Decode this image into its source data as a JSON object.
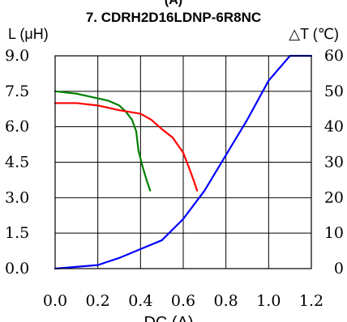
{
  "chart_data": {
    "type": "line",
    "title": "7. CDRH2D16LDNP-6R8NC",
    "top_clipped_text": "(A)",
    "xlabel": "DC (A)",
    "ylabel_left": "L (μH)",
    "ylabel_right": "△T (℃)",
    "xlim": [
      0,
      1.2
    ],
    "ylim_left": [
      0,
      9
    ],
    "ylim_right": [
      0,
      60
    ],
    "grid": true,
    "x_ticks": [
      "0.0",
      "0.2",
      "0.4",
      "0.6",
      "0.8",
      "1.0",
      "1.2"
    ],
    "y_left_ticks": [
      "0.0",
      "1.5",
      "3.0",
      "4.5",
      "6.0",
      "7.5",
      "9.0"
    ],
    "y_right_ticks": [
      "0",
      "10",
      "20",
      "30",
      "40",
      "50",
      "60"
    ],
    "series": [
      {
        "color": "#008000",
        "axis": "left",
        "points": [
          [
            0,
            7.5
          ],
          [
            0.05,
            7.45
          ],
          [
            0.1,
            7.4
          ],
          [
            0.15,
            7.3
          ],
          [
            0.2,
            7.2
          ],
          [
            0.25,
            7.1
          ],
          [
            0.3,
            6.9
          ],
          [
            0.33,
            6.65
          ],
          [
            0.36,
            6.3
          ],
          [
            0.38,
            5.8
          ],
          [
            0.39,
            5.0
          ],
          [
            0.41,
            4.3
          ],
          [
            0.43,
            3.7
          ],
          [
            0.445,
            3.3
          ]
        ]
      },
      {
        "color": "#ff0000",
        "axis": "left",
        "points": [
          [
            0,
            7.0
          ],
          [
            0.1,
            7.0
          ],
          [
            0.2,
            6.9
          ],
          [
            0.3,
            6.7
          ],
          [
            0.4,
            6.55
          ],
          [
            0.45,
            6.3
          ],
          [
            0.5,
            5.9
          ],
          [
            0.55,
            5.55
          ],
          [
            0.6,
            4.9
          ],
          [
            0.63,
            4.2
          ],
          [
            0.65,
            3.7
          ],
          [
            0.665,
            3.3
          ]
        ]
      },
      {
        "color": "#0000ff",
        "axis": "right",
        "points": [
          [
            0,
            0
          ],
          [
            0.2,
            1
          ],
          [
            0.3,
            3
          ],
          [
            0.4,
            5.5
          ],
          [
            0.5,
            8
          ],
          [
            0.6,
            14
          ],
          [
            0.7,
            22
          ],
          [
            0.8,
            32
          ],
          [
            0.9,
            42
          ],
          [
            1.0,
            53
          ],
          [
            1.1,
            61
          ],
          [
            1.2,
            67
          ]
        ]
      }
    ]
  }
}
